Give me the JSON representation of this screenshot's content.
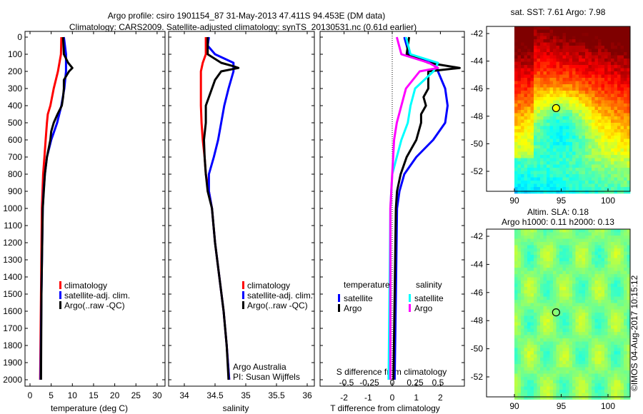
{
  "header": {
    "title_line1": "Argo profile: csiro 1901154_87 31-May-2013 47.411S 94.453E (DM data)",
    "title_line2": "Climatology: CARS2009. Satellite-adjusted climatology: synTS_20130531.nc (0.61d earlier)"
  },
  "colors": {
    "climatology": "#ff0000",
    "satellite": "#0000ff",
    "argo": "#000000",
    "sal_satellite": "#00ffff",
    "sal_argo": "#ff00ff"
  },
  "chart_data": [
    {
      "type": "line",
      "id": "temperature",
      "xlabel": "temperature (deg C)",
      "ylabel": "",
      "xlim": [
        -1,
        31.5
      ],
      "ylim": [
        2038,
        -33
      ],
      "xticks": [
        "0",
        "5",
        "10",
        "15",
        "20",
        "25",
        "30"
      ],
      "yticks": [
        "0",
        "100",
        "200",
        "300",
        "400",
        "500",
        "600",
        "700",
        "800",
        "900",
        "1000",
        "1100",
        "1200",
        "1300",
        "1400",
        "1500",
        "1600",
        "1700",
        "1800",
        "1900",
        "2000"
      ],
      "legend": [
        "climatology",
        "satellite-adj. clim.",
        "Argo(..raw -QC)"
      ],
      "series": [
        {
          "name": "climatology",
          "depth": [
            0,
            100,
            200,
            300,
            400,
            450,
            500,
            600,
            700,
            800,
            1000,
            1500,
            2000
          ],
          "values": [
            7.4,
            7.3,
            6.6,
            5.6,
            4.8,
            4.2,
            4.0,
            3.7,
            3.4,
            3.1,
            2.8,
            2.6,
            2.4
          ]
        },
        {
          "name": "satellite-adj. clim.",
          "depth": [
            0,
            100,
            200,
            300,
            400,
            500,
            600,
            700,
            800,
            900,
            1000,
            1500,
            2000
          ],
          "values": [
            8.0,
            8.5,
            8.5,
            8.1,
            7.4,
            6.4,
            5.0,
            4.0,
            3.5,
            3.2,
            3.0,
            2.7,
            2.5
          ]
        },
        {
          "name": "Argo(..raw -QC)",
          "depth": [
            0,
            100,
            150,
            180,
            200,
            250,
            300,
            350,
            400,
            450,
            500,
            550,
            600,
            700,
            800,
            1000,
            1500,
            2000
          ],
          "values": [
            7.8,
            8.0,
            9.0,
            10.0,
            9.2,
            8.0,
            8.0,
            7.8,
            7.5,
            6.5,
            5.6,
            5.0,
            4.8,
            4.0,
            3.5,
            3.0,
            2.7,
            2.6
          ]
        }
      ]
    },
    {
      "type": "line",
      "id": "salinity",
      "xlabel": "salinity",
      "xlim": [
        33.74,
        36.12
      ],
      "ylim": [
        2038,
        -33
      ],
      "xticks": [
        "34",
        "34.5",
        "35",
        "35.5",
        "36"
      ],
      "legend": [
        "climatology",
        "satellite-adj. clim.",
        "Argo(..raw -QC)"
      ],
      "annotation": [
        "Argo Australia",
        "PI: Susan Wijffels"
      ],
      "series": [
        {
          "name": "climatology",
          "depth": [
            0,
            100,
            150,
            200,
            300,
            400,
            500,
            600,
            700,
            800,
            900,
            1000,
            1200,
            1400,
            1600,
            1800,
            2000
          ],
          "values": [
            34.35,
            34.35,
            34.3,
            34.27,
            34.27,
            34.27,
            34.28,
            34.3,
            34.33,
            34.35,
            34.4,
            34.45,
            34.5,
            34.57,
            34.64,
            34.69,
            34.73
          ]
        },
        {
          "name": "satellite-adj. clim.",
          "depth": [
            0,
            50,
            100,
            150,
            200,
            300,
            400,
            500,
            600,
            700,
            800,
            900,
            1000,
            1200,
            1400,
            1600,
            1800,
            2000
          ],
          "values": [
            34.4,
            34.38,
            34.5,
            34.8,
            34.8,
            34.72,
            34.65,
            34.6,
            34.55,
            34.48,
            34.4,
            34.4,
            34.45,
            34.5,
            34.57,
            34.64,
            34.69,
            34.73
          ]
        },
        {
          "name": "Argo(..raw -QC)",
          "depth": [
            0,
            100,
            150,
            170,
            180,
            200,
            250,
            300,
            350,
            400,
            500,
            600,
            700,
            800,
            900,
            1000,
            1200,
            1400,
            1600,
            1800,
            2000
          ],
          "values": [
            34.38,
            34.38,
            34.6,
            34.8,
            34.88,
            34.6,
            34.5,
            34.45,
            34.4,
            34.35,
            34.35,
            34.32,
            34.33,
            34.35,
            34.38,
            34.45,
            34.5,
            34.57,
            34.64,
            34.69,
            34.72
          ]
        }
      ]
    },
    {
      "type": "line",
      "id": "difference",
      "xlabel": "T difference from climatology",
      "x2label": "S difference from climatology",
      "xlim": [
        -3,
        3
      ],
      "x2lim": [
        -0.78,
        0.78
      ],
      "ylim": [
        2038,
        -33
      ],
      "xticks": [
        "-2",
        "-1",
        "0",
        "1",
        "2"
      ],
      "x2ticks": [
        "-0.5",
        "-0.25",
        "0",
        "0.25",
        "0.5"
      ],
      "legend_headers": [
        "temperature",
        "salinity"
      ],
      "legend": [
        "satellite",
        "Argo",
        "satellite",
        "Argo"
      ],
      "series": [
        {
          "name": "T satellite",
          "axis": "T",
          "depth": [
            0,
            100,
            150,
            200,
            300,
            400,
            500,
            600,
            700,
            800,
            900,
            1000,
            1500,
            2000
          ],
          "values": [
            0.5,
            0.7,
            1.8,
            1.9,
            2.2,
            2.3,
            2.2,
            1.7,
            1.0,
            0.5,
            0.3,
            0.2,
            0.15,
            0.1
          ]
        },
        {
          "name": "T Argo",
          "axis": "T",
          "depth": [
            0,
            100,
            150,
            180,
            200,
            300,
            350,
            400,
            450,
            500,
            600,
            700,
            800,
            900,
            1000,
            2000
          ],
          "values": [
            0.7,
            0.6,
            1.5,
            2.8,
            1.5,
            1.5,
            1.3,
            1.4,
            1.2,
            1.2,
            1.0,
            0.6,
            0.35,
            0.2,
            0.15,
            0.05
          ]
        },
        {
          "name": "S satellite",
          "axis": "S",
          "depth": [
            0,
            100,
            150,
            200,
            300,
            400,
            500,
            600,
            700,
            800,
            1000,
            2000
          ],
          "values": [
            0.15,
            0.2,
            0.5,
            0.45,
            0.25,
            0.2,
            0.17,
            0.1,
            0.05,
            0.0,
            -0.02,
            -0.04
          ]
        },
        {
          "name": "S Argo",
          "axis": "S",
          "depth": [
            0,
            100,
            150,
            180,
            200,
            300,
            400,
            500,
            600,
            800,
            1000,
            2000
          ],
          "values": [
            0.05,
            0.1,
            0.4,
            0.5,
            0.3,
            0.15,
            0.1,
            0.05,
            0.02,
            0.0,
            -0.02,
            -0.02
          ]
        }
      ]
    },
    {
      "type": "heatmap",
      "id": "sst-map",
      "title": "sat. SST: 7.61  Argo: 7.98",
      "xticks": [
        "90",
        "95",
        "100"
      ],
      "yticks": [
        "-42",
        "-44",
        "-46",
        "-48",
        "-50",
        "-52"
      ],
      "float_position": {
        "lon": 94.453,
        "lat": -47.411
      }
    },
    {
      "type": "heatmap",
      "id": "sla-map",
      "title_line1": "Altim. SLA: 0.18",
      "title_line2": "Argo h1000: 0.11 h2000: 0.13",
      "xticks": [
        "90",
        "95",
        "100"
      ],
      "yticks": [
        "-42",
        "-44",
        "-46",
        "-48",
        "-50",
        "-52"
      ],
      "float_position": {
        "lon": 94.453,
        "lat": -47.411
      }
    }
  ],
  "footer": {
    "credit": "©IMOS 04-Aug-2017 10:15:12"
  }
}
